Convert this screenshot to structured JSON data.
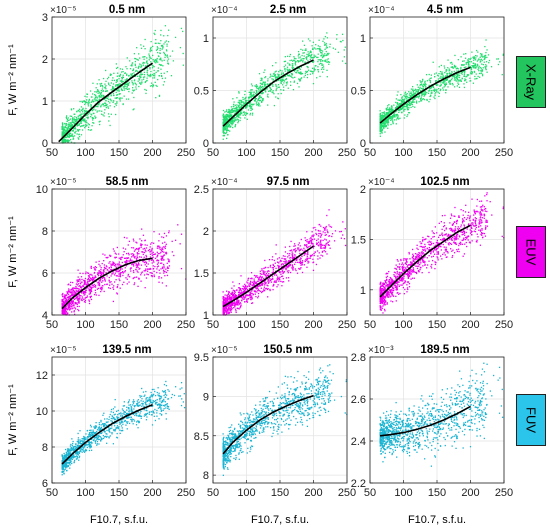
{
  "figure": {
    "row_labels": [
      "X-Ray",
      "EUV",
      "FUV"
    ],
    "row_colors": [
      "#22c55e",
      "#f000f0",
      "#2bc4ea"
    ],
    "y_axis_label": "F,  W m⁻² nm⁻¹",
    "x_axis_label": "F10.7,  s.f.u."
  },
  "chart_data": [
    {
      "type": "scatter",
      "title": "0.5 nm",
      "exponent": "×10⁻⁵",
      "xlim": [
        50,
        250
      ],
      "ylim": [
        0,
        3
      ],
      "xticks": [
        50,
        100,
        150,
        200,
        250
      ],
      "yticks": [
        0,
        1,
        2,
        3
      ],
      "grid": true,
      "point_color": "#22dd6e",
      "fit": {
        "x": [
          60,
          80,
          100,
          120,
          140,
          160,
          180,
          200
        ],
        "y": [
          0.03,
          0.35,
          0.68,
          0.98,
          1.22,
          1.45,
          1.68,
          1.9
        ]
      },
      "scatter_spread": 0.25
    },
    {
      "type": "scatter",
      "title": "2.5 nm",
      "exponent": "×10⁻⁴",
      "xlim": [
        50,
        250
      ],
      "ylim": [
        0,
        1.2
      ],
      "xticks": [
        50,
        100,
        150,
        200,
        250
      ],
      "yticks": [
        0,
        0.5,
        1
      ],
      "grid": true,
      "point_color": "#22dd6e",
      "fit": {
        "x": [
          65,
          80,
          100,
          120,
          140,
          160,
          180,
          200
        ],
        "y": [
          0.16,
          0.25,
          0.37,
          0.48,
          0.58,
          0.66,
          0.73,
          0.79
        ]
      },
      "scatter_spread": 0.07
    },
    {
      "type": "scatter",
      "title": "4.5 nm",
      "exponent": "×10⁻⁴",
      "xlim": [
        50,
        250
      ],
      "ylim": [
        0,
        1.2
      ],
      "xticks": [
        50,
        100,
        150,
        200,
        250
      ],
      "yticks": [
        0,
        0.5,
        1
      ],
      "grid": true,
      "point_color": "#22dd6e",
      "fit": {
        "x": [
          65,
          80,
          100,
          120,
          140,
          160,
          180,
          200
        ],
        "y": [
          0.19,
          0.27,
          0.37,
          0.46,
          0.54,
          0.61,
          0.67,
          0.72
        ]
      },
      "scatter_spread": 0.06
    },
    {
      "type": "scatter",
      "title": "58.5 nm",
      "exponent": "×10⁻⁵",
      "xlim": [
        50,
        250
      ],
      "ylim": [
        4,
        10
      ],
      "xticks": [
        50,
        100,
        150,
        200,
        250
      ],
      "yticks": [
        4,
        6,
        8,
        10
      ],
      "grid": true,
      "point_color": "#f000f0",
      "fit": {
        "x": [
          65,
          80,
          100,
          120,
          140,
          160,
          180,
          200
        ],
        "y": [
          4.3,
          4.8,
          5.3,
          5.75,
          6.1,
          6.4,
          6.6,
          6.7
        ]
      },
      "scatter_spread": 0.45
    },
    {
      "type": "scatter",
      "title": "97.5 nm",
      "exponent": "×10⁻⁴",
      "xlim": [
        50,
        250
      ],
      "ylim": [
        1,
        2.5
      ],
      "xticks": [
        50,
        100,
        150,
        200,
        250
      ],
      "yticks": [
        1,
        1.5,
        2,
        2.5
      ],
      "grid": true,
      "point_color": "#f000f0",
      "fit": {
        "x": [
          65,
          80,
          100,
          120,
          140,
          160,
          180,
          200
        ],
        "y": [
          1.1,
          1.17,
          1.27,
          1.38,
          1.49,
          1.6,
          1.71,
          1.82
        ]
      },
      "scatter_spread": 0.09
    },
    {
      "type": "scatter",
      "title": "102.5 nm",
      "exponent": "×10⁻⁴",
      "xlim": [
        50,
        250
      ],
      "ylim": [
        0.75,
        2
      ],
      "xticks": [
        50,
        100,
        150,
        200,
        250
      ],
      "yticks": [
        1,
        1.5,
        2
      ],
      "grid": true,
      "point_color": "#f000f0",
      "fit": {
        "x": [
          65,
          80,
          100,
          120,
          140,
          160,
          180,
          200
        ],
        "y": [
          0.93,
          1.03,
          1.16,
          1.28,
          1.39,
          1.48,
          1.57,
          1.64
        ]
      },
      "scatter_spread": 0.09
    },
    {
      "type": "scatter",
      "title": "139.5 nm",
      "exponent": "×10⁻⁵",
      "xlim": [
        50,
        250
      ],
      "ylim": [
        6,
        13
      ],
      "xticks": [
        50,
        100,
        150,
        200,
        250
      ],
      "yticks": [
        6,
        8,
        10,
        12
      ],
      "grid": true,
      "point_color": "#19b4d2",
      "fit": {
        "x": [
          65,
          80,
          100,
          120,
          140,
          160,
          180,
          200
        ],
        "y": [
          7.05,
          7.6,
          8.25,
          8.8,
          9.3,
          9.7,
          10.05,
          10.35
        ]
      },
      "scatter_spread": 0.35
    },
    {
      "type": "scatter",
      "title": "150.5 nm",
      "exponent": "×10⁻⁵",
      "xlim": [
        50,
        250
      ],
      "ylim": [
        7.9,
        9.5
      ],
      "xticks": [
        50,
        100,
        150,
        200,
        250
      ],
      "yticks": [
        8,
        8.5,
        9,
        9.5
      ],
      "grid": true,
      "point_color": "#19b4d2",
      "fit": {
        "x": [
          65,
          80,
          100,
          120,
          140,
          160,
          180,
          200
        ],
        "y": [
          8.27,
          8.42,
          8.57,
          8.7,
          8.8,
          8.88,
          8.95,
          9.01
        ]
      },
      "scatter_spread": 0.13
    },
    {
      "type": "scatter",
      "title": "189.5 nm",
      "exponent": "×10⁻³",
      "xlim": [
        50,
        250
      ],
      "ylim": [
        2.2,
        2.8
      ],
      "xticks": [
        50,
        100,
        150,
        200,
        250
      ],
      "yticks": [
        2.2,
        2.4,
        2.6,
        2.8
      ],
      "grid": true,
      "point_color": "#19b4d2",
      "fit": {
        "x": [
          65,
          80,
          100,
          120,
          140,
          160,
          180,
          200
        ],
        "y": [
          2.425,
          2.43,
          2.44,
          2.455,
          2.475,
          2.5,
          2.53,
          2.565
        ]
      },
      "scatter_spread": 0.06
    }
  ]
}
